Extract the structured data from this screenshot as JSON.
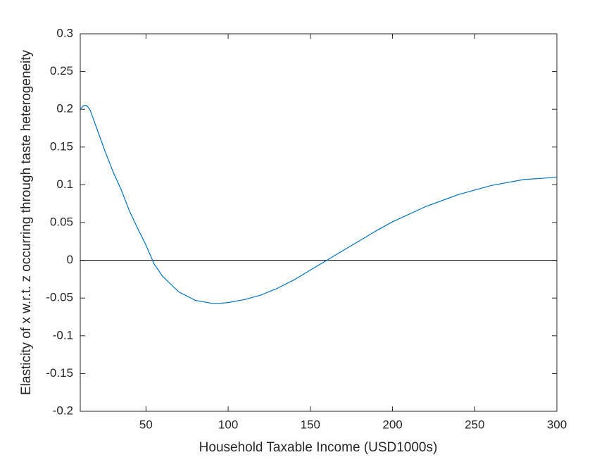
{
  "chart_data": {
    "type": "line",
    "x_label": "Household Taxable Income (USD1000s)",
    "y_label": "Elasticity of x w.r.t. z occurring through taste heterogeneity",
    "x": [
      10,
      12,
      14,
      16,
      20,
      25,
      30,
      35,
      40,
      45,
      50,
      55,
      60,
      70,
      80,
      90,
      95,
      100,
      110,
      120,
      130,
      140,
      150,
      160,
      170,
      180,
      190,
      200,
      220,
      240,
      260,
      280,
      300
    ],
    "series": [
      {
        "color": "#0072bd",
        "values": [
          0.2,
          0.205,
          0.205,
          0.199,
          0.175,
          0.145,
          0.117,
          0.093,
          0.065,
          0.042,
          0.02,
          -0.005,
          -0.021,
          -0.042,
          -0.053,
          -0.057,
          -0.057,
          -0.056,
          -0.052,
          -0.046,
          -0.037,
          -0.026,
          -0.013,
          0.0,
          0.013,
          0.026,
          0.039,
          0.051,
          0.071,
          0.087,
          0.099,
          0.107,
          0.11
        ]
      }
    ],
    "hline": {
      "value": 0,
      "color": "#000000"
    },
    "xlim": [
      10,
      300
    ],
    "xticks": [
      50,
      100,
      150,
      200,
      250,
      300
    ],
    "ylim": [
      -0.2,
      0.3
    ],
    "yticks": [
      -0.2,
      -0.15,
      -0.1,
      -0.05,
      0,
      0.05,
      0.1,
      0.15,
      0.2,
      0.25,
      0.3
    ]
  }
}
